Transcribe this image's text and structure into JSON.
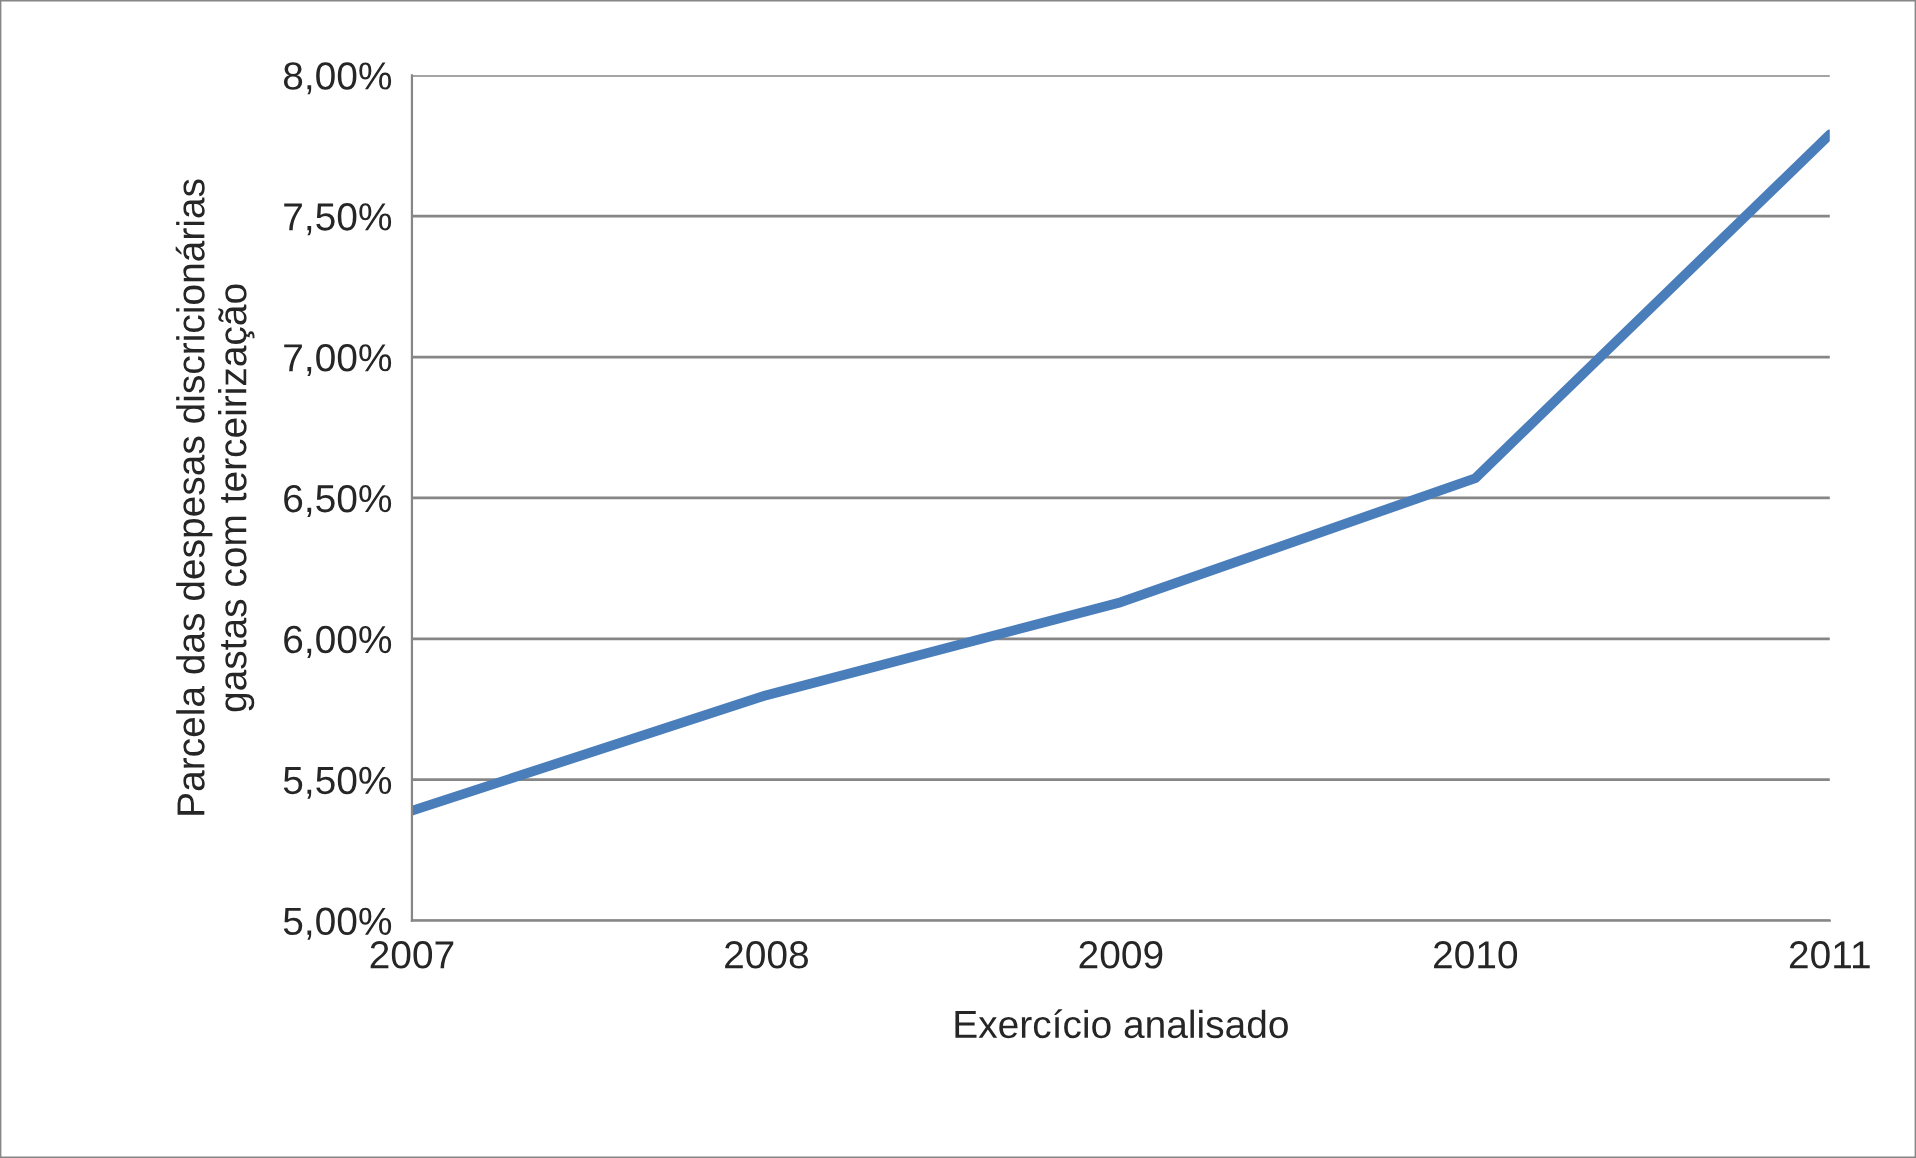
{
  "chart_data": {
    "type": "line",
    "xlabel": "Exercício analisado",
    "ylabel": "Parcela das despesas discricionárias\ngastas com terceirização",
    "x": [
      2007,
      2008,
      2009,
      2010,
      2011
    ],
    "series": [
      {
        "color": "#4a7ebb",
        "values": [
          5.39,
          5.8,
          6.13,
          6.57,
          7.79
        ]
      }
    ],
    "xlim": [
      2007,
      2011
    ],
    "xticks": [
      2007,
      2008,
      2009,
      2010,
      2011
    ],
    "ylim": [
      5.0,
      8.0
    ],
    "yticks": [
      {
        "value": 5.0,
        "label": "5,00%"
      },
      {
        "value": 5.5,
        "label": "5,50%"
      },
      {
        "value": 6.0,
        "label": "6,00%"
      },
      {
        "value": 6.5,
        "label": "6,50%"
      },
      {
        "value": 7.0,
        "label": "7,00%"
      },
      {
        "value": 7.5,
        "label": "7,50%"
      },
      {
        "value": 8.0,
        "label": "8,00%"
      }
    ],
    "grid": "y",
    "marker": "none",
    "line_style": "solid"
  }
}
